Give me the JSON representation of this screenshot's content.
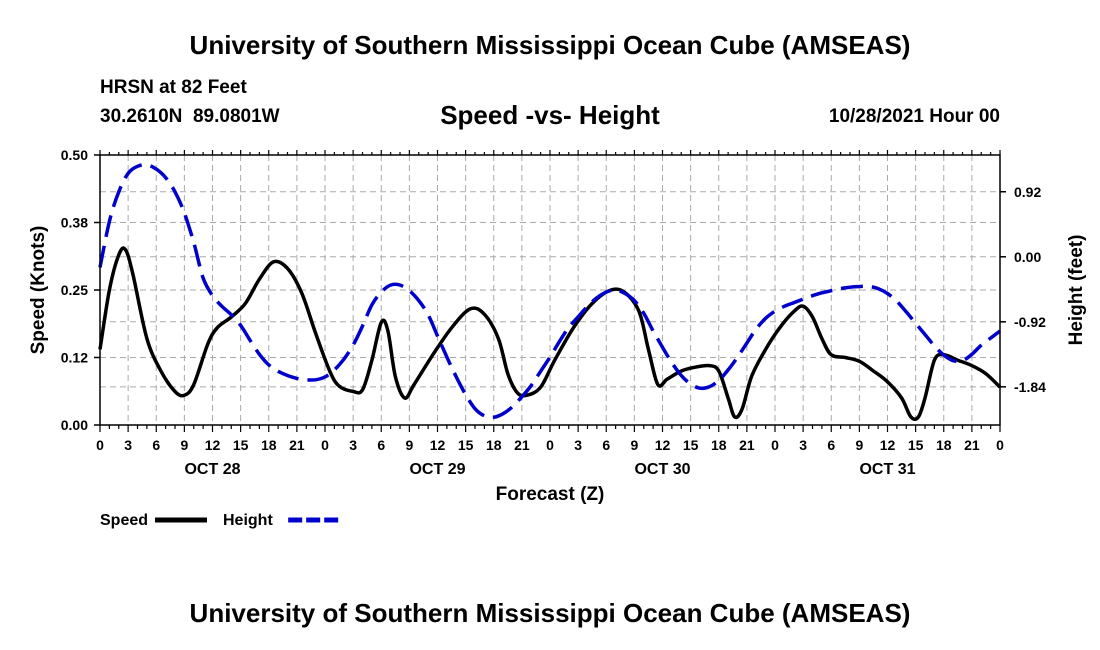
{
  "header": {
    "title_top": "University of Southern Mississippi Ocean Cube (AMSEAS)",
    "station": "HRSN at 82 Feet",
    "coords": "30.2610N  89.0801W",
    "datetime": "10/28/2021 Hour 00",
    "title_bottom": "University of Southern Mississippi Ocean Cube (AMSEAS)"
  },
  "chart_data": {
    "type": "line",
    "title": "Speed -vs- Height",
    "xlabel": "Forecast (Z)",
    "ylabel_left": "Speed (Knots)",
    "ylabel_right": "Height (feet)",
    "x_range_hours": [
      0,
      96
    ],
    "ylim_left": [
      0,
      0.5
    ],
    "ylim_right": [
      -2.38,
      1.44
    ],
    "left_ticks": [
      {
        "value": 0.0,
        "label": "0.00"
      },
      {
        "value": 0.125,
        "label": "0.12"
      },
      {
        "value": 0.25,
        "label": "0.25"
      },
      {
        "value": 0.375,
        "label": "0.38"
      },
      {
        "value": 0.5,
        "label": "0.50"
      }
    ],
    "right_ticks": [
      {
        "value": 0.92,
        "label": "0.92"
      },
      {
        "value": 0.0,
        "label": "0.00"
      },
      {
        "value": -0.92,
        "label": "-0.92"
      },
      {
        "value": -1.84,
        "label": "-1.84"
      }
    ],
    "x_ticks": [
      {
        "hour": 0,
        "label": "0"
      },
      {
        "hour": 3,
        "label": "3"
      },
      {
        "hour": 6,
        "label": "6"
      },
      {
        "hour": 9,
        "label": "9"
      },
      {
        "hour": 12,
        "label": "12"
      },
      {
        "hour": 15,
        "label": "15"
      },
      {
        "hour": 18,
        "label": "18"
      },
      {
        "hour": 21,
        "label": "21"
      },
      {
        "hour": 24,
        "label": "0"
      },
      {
        "hour": 27,
        "label": "3"
      },
      {
        "hour": 30,
        "label": "6"
      },
      {
        "hour": 33,
        "label": "9"
      },
      {
        "hour": 36,
        "label": "12"
      },
      {
        "hour": 39,
        "label": "15"
      },
      {
        "hour": 42,
        "label": "18"
      },
      {
        "hour": 45,
        "label": "21"
      },
      {
        "hour": 48,
        "label": "0"
      },
      {
        "hour": 51,
        "label": "3"
      },
      {
        "hour": 54,
        "label": "6"
      },
      {
        "hour": 57,
        "label": "9"
      },
      {
        "hour": 60,
        "label": "12"
      },
      {
        "hour": 63,
        "label": "15"
      },
      {
        "hour": 66,
        "label": "18"
      },
      {
        "hour": 69,
        "label": "21"
      },
      {
        "hour": 72,
        "label": "0"
      },
      {
        "hour": 75,
        "label": "3"
      },
      {
        "hour": 78,
        "label": "6"
      },
      {
        "hour": 81,
        "label": "9"
      },
      {
        "hour": 84,
        "label": "12"
      },
      {
        "hour": 87,
        "label": "15"
      },
      {
        "hour": 90,
        "label": "18"
      },
      {
        "hour": 93,
        "label": "21"
      },
      {
        "hour": 96,
        "label": "0"
      }
    ],
    "day_labels": [
      {
        "hour": 12,
        "label": "OCT 28"
      },
      {
        "hour": 36,
        "label": "OCT 29"
      },
      {
        "hour": 60,
        "label": "OCT 30"
      },
      {
        "hour": 84,
        "label": "OCT 31"
      }
    ],
    "series": [
      {
        "name": "Speed",
        "axis": "left",
        "color": "#000000",
        "dash": "solid",
        "points": [
          [
            0,
            0.14
          ],
          [
            1,
            0.25
          ],
          [
            2,
            0.315
          ],
          [
            2.7,
            0.325
          ],
          [
            3.5,
            0.28
          ],
          [
            5,
            0.16
          ],
          [
            6.5,
            0.1
          ],
          [
            8,
            0.062
          ],
          [
            9,
            0.055
          ],
          [
            10,
            0.075
          ],
          [
            11.5,
            0.15
          ],
          [
            12.5,
            0.18
          ],
          [
            14,
            0.2
          ],
          [
            15.5,
            0.225
          ],
          [
            17,
            0.27
          ],
          [
            18.5,
            0.302
          ],
          [
            20,
            0.29
          ],
          [
            21.5,
            0.245
          ],
          [
            23,
            0.17
          ],
          [
            24.5,
            0.1
          ],
          [
            25.5,
            0.072
          ],
          [
            27,
            0.062
          ],
          [
            28,
            0.065
          ],
          [
            29,
            0.12
          ],
          [
            30,
            0.19
          ],
          [
            30.7,
            0.175
          ],
          [
            31.5,
            0.09
          ],
          [
            32.5,
            0.05
          ],
          [
            33.5,
            0.075
          ],
          [
            35.5,
            0.13
          ],
          [
            37.5,
            0.18
          ],
          [
            39.5,
            0.215
          ],
          [
            41,
            0.205
          ],
          [
            42.5,
            0.16
          ],
          [
            43.5,
            0.095
          ],
          [
            44.5,
            0.06
          ],
          [
            45.5,
            0.055
          ],
          [
            47,
            0.07
          ],
          [
            48.5,
            0.12
          ],
          [
            50.5,
            0.18
          ],
          [
            52.5,
            0.225
          ],
          [
            54.5,
            0.25
          ],
          [
            56,
            0.245
          ],
          [
            57.5,
            0.21
          ],
          [
            58.5,
            0.14
          ],
          [
            59.5,
            0.075
          ],
          [
            60.5,
            0.085
          ],
          [
            62,
            0.1
          ],
          [
            63.5,
            0.107
          ],
          [
            65,
            0.11
          ],
          [
            66,
            0.1
          ],
          [
            67,
            0.05
          ],
          [
            67.7,
            0.015
          ],
          [
            68.5,
            0.03
          ],
          [
            69.5,
            0.09
          ],
          [
            71,
            0.14
          ],
          [
            72.5,
            0.18
          ],
          [
            74,
            0.21
          ],
          [
            75,
            0.22
          ],
          [
            76,
            0.2
          ],
          [
            77,
            0.16
          ],
          [
            78,
            0.13
          ],
          [
            79.5,
            0.125
          ],
          [
            81,
            0.118
          ],
          [
            82.5,
            0.1
          ],
          [
            84,
            0.08
          ],
          [
            85.5,
            0.05
          ],
          [
            86.5,
            0.015
          ],
          [
            87.3,
            0.015
          ],
          [
            88,
            0.05
          ],
          [
            89,
            0.12
          ],
          [
            90,
            0.13
          ],
          [
            91.5,
            0.12
          ],
          [
            93,
            0.11
          ],
          [
            94.5,
            0.095
          ],
          [
            96,
            0.07
          ]
        ]
      },
      {
        "name": "Height",
        "axis": "right",
        "color": "#0000cc",
        "dash": "dashed",
        "points": [
          [
            0,
            -0.15
          ],
          [
            1,
            0.5
          ],
          [
            2,
            0.92
          ],
          [
            3,
            1.18
          ],
          [
            4,
            1.28
          ],
          [
            5,
            1.3
          ],
          [
            6,
            1.24
          ],
          [
            7,
            1.12
          ],
          [
            8,
            0.92
          ],
          [
            9,
            0.62
          ],
          [
            10,
            0.2
          ],
          [
            11,
            -0.3
          ],
          [
            12,
            -0.55
          ],
          [
            13,
            -0.7
          ],
          [
            14,
            -0.82
          ],
          [
            15,
            -0.97
          ],
          [
            16,
            -1.18
          ],
          [
            17,
            -1.38
          ],
          [
            18,
            -1.53
          ],
          [
            19,
            -1.62
          ],
          [
            20,
            -1.68
          ],
          [
            21,
            -1.72
          ],
          [
            22,
            -1.74
          ],
          [
            23,
            -1.74
          ],
          [
            24,
            -1.7
          ],
          [
            25,
            -1.6
          ],
          [
            26,
            -1.45
          ],
          [
            27,
            -1.25
          ],
          [
            28,
            -0.98
          ],
          [
            29,
            -0.68
          ],
          [
            30,
            -0.5
          ],
          [
            31,
            -0.4
          ],
          [
            32,
            -0.4
          ],
          [
            33,
            -0.48
          ],
          [
            34,
            -0.62
          ],
          [
            35,
            -0.82
          ],
          [
            36,
            -1.12
          ],
          [
            37,
            -1.42
          ],
          [
            38,
            -1.7
          ],
          [
            39,
            -1.95
          ],
          [
            40,
            -2.15
          ],
          [
            41,
            -2.25
          ],
          [
            42,
            -2.27
          ],
          [
            43,
            -2.22
          ],
          [
            44,
            -2.12
          ],
          [
            45,
            -1.98
          ],
          [
            46,
            -1.82
          ],
          [
            47,
            -1.62
          ],
          [
            48,
            -1.42
          ],
          [
            49,
            -1.2
          ],
          [
            50,
            -1.0
          ],
          [
            51,
            -0.85
          ],
          [
            52,
            -0.7
          ],
          [
            53,
            -0.58
          ],
          [
            54,
            -0.5
          ],
          [
            55,
            -0.47
          ],
          [
            56,
            -0.52
          ],
          [
            57,
            -0.62
          ],
          [
            58,
            -0.8
          ],
          [
            59,
            -1.05
          ],
          [
            60,
            -1.28
          ],
          [
            61,
            -1.5
          ],
          [
            62,
            -1.68
          ],
          [
            63,
            -1.8
          ],
          [
            64,
            -1.86
          ],
          [
            65,
            -1.84
          ],
          [
            66,
            -1.75
          ],
          [
            67,
            -1.6
          ],
          [
            68,
            -1.42
          ],
          [
            69,
            -1.22
          ],
          [
            70,
            -1.02
          ],
          [
            71,
            -0.87
          ],
          [
            72,
            -0.77
          ],
          [
            73,
            -0.7
          ],
          [
            74,
            -0.65
          ],
          [
            75,
            -0.6
          ],
          [
            76,
            -0.55
          ],
          [
            77,
            -0.51
          ],
          [
            78,
            -0.48
          ],
          [
            79,
            -0.45
          ],
          [
            80,
            -0.43
          ],
          [
            81,
            -0.42
          ],
          [
            82,
            -0.42
          ],
          [
            83,
            -0.45
          ],
          [
            84,
            -0.52
          ],
          [
            85,
            -0.63
          ],
          [
            86,
            -0.78
          ],
          [
            87,
            -0.94
          ],
          [
            88,
            -1.1
          ],
          [
            89,
            -1.26
          ],
          [
            90,
            -1.39
          ],
          [
            91,
            -1.47
          ],
          [
            92,
            -1.47
          ],
          [
            93,
            -1.38
          ],
          [
            94,
            -1.25
          ],
          [
            95,
            -1.15
          ],
          [
            96,
            -1.05
          ]
        ]
      }
    ],
    "legend": [
      {
        "label": "Speed",
        "color": "#000000",
        "dash": "solid"
      },
      {
        "label": "Height",
        "color": "#0000cc",
        "dash": "dashed"
      }
    ],
    "legend_position": "bottom-left",
    "grid": true
  }
}
